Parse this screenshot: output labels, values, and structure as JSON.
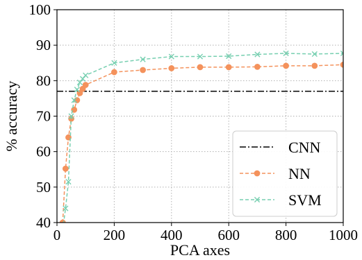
{
  "chart_data": {
    "type": "line",
    "xlabel": "PCA axes",
    "ylabel": "% accuracy",
    "xlim": [
      0,
      1000
    ],
    "ylim": [
      40,
      100
    ],
    "xticks": [
      0,
      200,
      400,
      600,
      800,
      1000
    ],
    "yticks": [
      40,
      50,
      60,
      70,
      80,
      90,
      100
    ],
    "grid": true,
    "legend_position": "bottom-right",
    "series": [
      {
        "name": "CNN",
        "style": "dash-dot",
        "color": "#000000",
        "x": [
          0,
          1000
        ],
        "y": [
          77,
          77
        ]
      },
      {
        "name": "NN",
        "style": "dashed",
        "marker": "circle",
        "color": "#f4925c",
        "x": [
          20,
          30,
          40,
          50,
          60,
          70,
          80,
          90,
          100,
          200,
          300,
          400,
          500,
          600,
          700,
          800,
          900,
          1000
        ],
        "y": [
          40,
          55.2,
          64,
          69.3,
          71.8,
          74.5,
          76.5,
          77.7,
          78.8,
          82.4,
          83.0,
          83.5,
          83.8,
          83.8,
          83.9,
          84.2,
          84.2,
          84.5
        ]
      },
      {
        "name": "SVM",
        "style": "dashed",
        "marker": "x",
        "color": "#76cfb0",
        "x": [
          20,
          30,
          40,
          50,
          60,
          70,
          80,
          90,
          100,
          200,
          300,
          400,
          500,
          600,
          700,
          800,
          900,
          1000
        ],
        "y": [
          38,
          44,
          51.5,
          70,
          74.5,
          77.5,
          79.5,
          80.5,
          81.5,
          85.0,
          86.0,
          86.8,
          86.8,
          86.9,
          87.4,
          87.7,
          87.5,
          87.7
        ]
      }
    ]
  }
}
